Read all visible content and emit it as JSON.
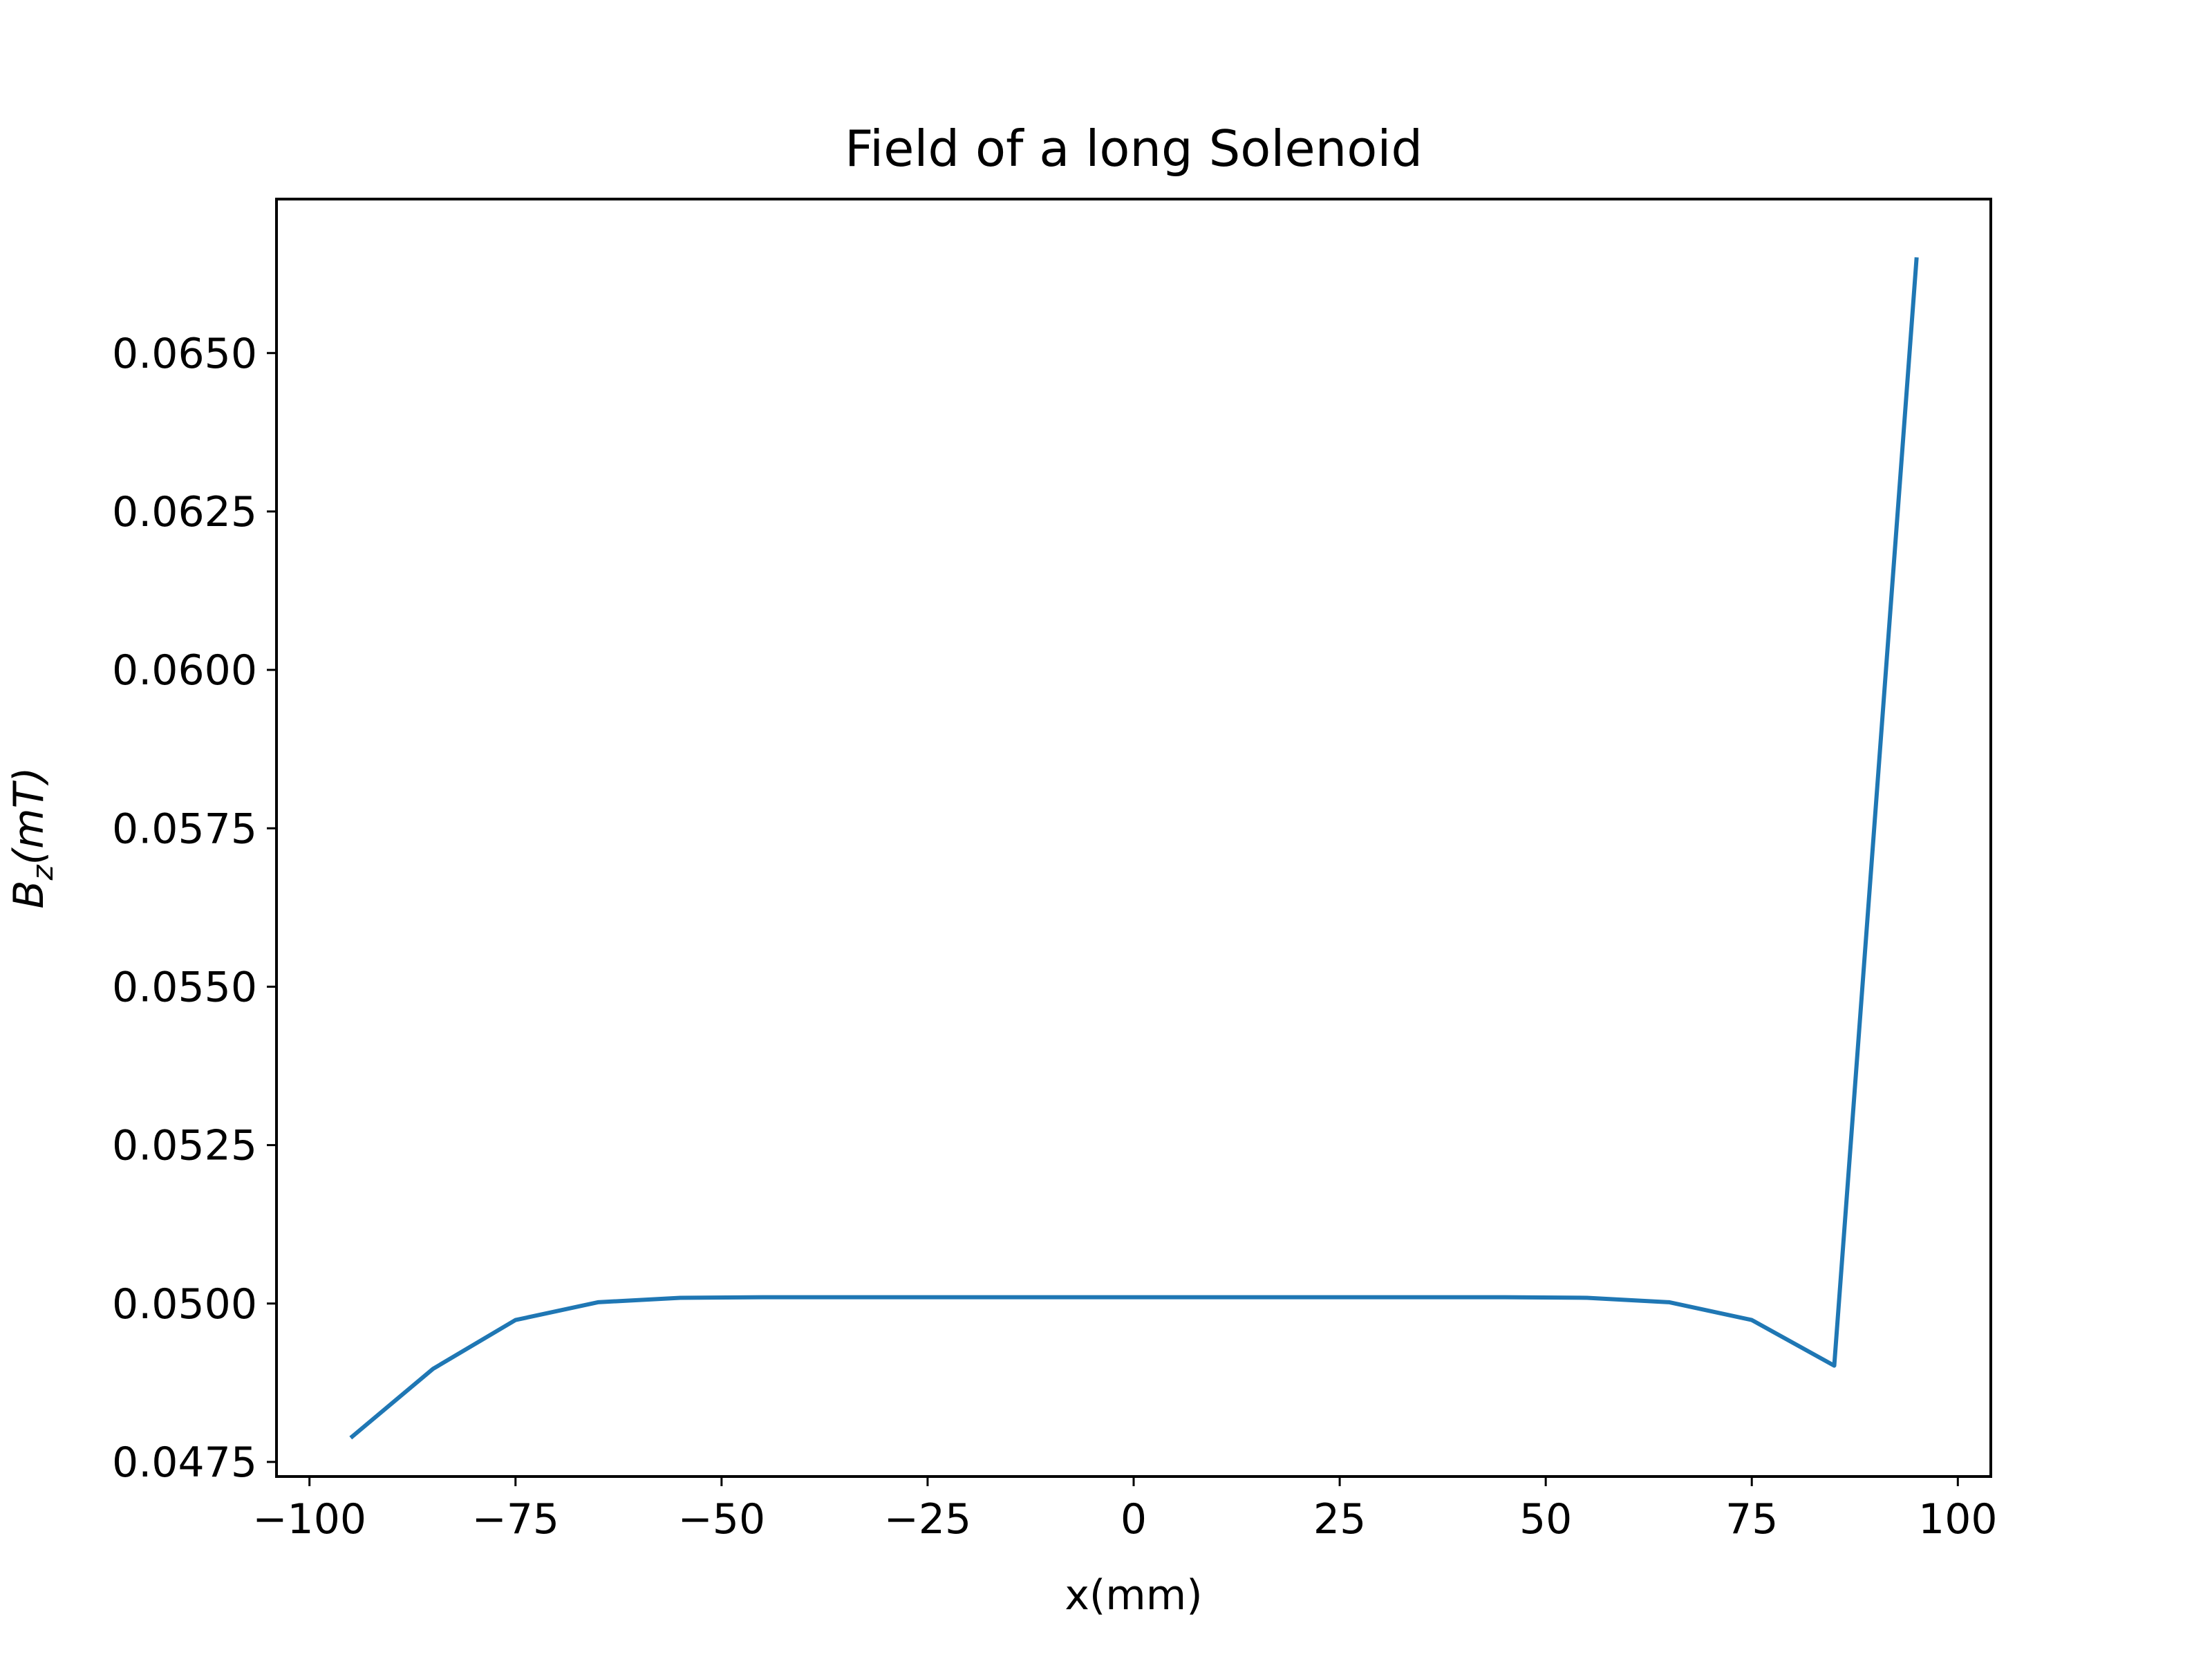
{
  "chart_data": {
    "type": "line",
    "title": "Field of a long Solenoid",
    "xlabel": "x(mm)",
    "ylabel_main": "B",
    "ylabel_sub": "z",
    "ylabel_rest": "(mT)",
    "xlim": [
      -104,
      104
    ],
    "ylim": [
      0.04727,
      0.06743
    ],
    "x_ticks": [
      -100,
      -75,
      -50,
      -25,
      0,
      25,
      50,
      75,
      100
    ],
    "x_tick_labels": [
      "−100",
      "−75",
      "−50",
      "−25",
      "0",
      "25",
      "50",
      "75",
      "100"
    ],
    "y_ticks": [
      0.0475,
      0.05,
      0.0525,
      0.055,
      0.0575,
      0.06,
      0.0625,
      0.065
    ],
    "y_tick_labels": [
      "0.0475",
      "0.0500",
      "0.0525",
      "0.0550",
      "0.0575",
      "0.0600",
      "0.0625",
      "0.0650"
    ],
    "grid": false,
    "series": [
      {
        "color": "#1f77b4",
        "x": [
          -95,
          -85,
          -75,
          -65,
          -55,
          -45,
          -35,
          -25,
          -15,
          -5,
          5,
          15,
          25,
          35,
          45,
          55,
          65,
          75,
          85,
          95
        ],
        "y": [
          0.04788,
          0.04897,
          0.04974,
          0.05002,
          0.05009,
          0.0501,
          0.0501,
          0.0501,
          0.0501,
          0.0501,
          0.0501,
          0.0501,
          0.0501,
          0.0501,
          0.0501,
          0.05009,
          0.05002,
          0.04974,
          0.04902,
          0.06651
        ]
      }
    ]
  }
}
